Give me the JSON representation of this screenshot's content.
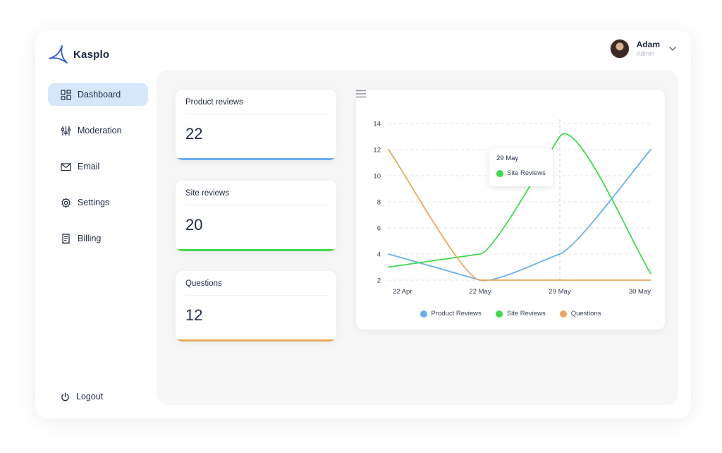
{
  "brand": {
    "name": "Kasplo",
    "accent": "#2f5bd8"
  },
  "user": {
    "name": "Adam",
    "role": "Admin"
  },
  "sidebar": {
    "items": [
      {
        "label": "Dashboard",
        "icon": "grid-icon",
        "active": true
      },
      {
        "label": "Moderation",
        "icon": "sliders-icon"
      },
      {
        "label": "Email",
        "icon": "mail-icon"
      },
      {
        "label": "Settings",
        "icon": "gear-icon"
      },
      {
        "label": "Billing",
        "icon": "receipt-icon"
      }
    ],
    "logout_label": "Logout"
  },
  "stats": [
    {
      "title": "Product reviews",
      "value": "22",
      "color": "#6aaef0"
    },
    {
      "title": "Site reviews",
      "value": "20",
      "color": "#3fd94b"
    },
    {
      "title": "Questions",
      "value": "12",
      "color": "#e9a95d"
    }
  ],
  "tooltip": {
    "title": "29 May",
    "series": "Site Reviews"
  },
  "chart_data": {
    "type": "line",
    "categories": [
      "22 Apr",
      "22 May",
      "29 May",
      "30 May"
    ],
    "ylim": [
      2,
      14
    ],
    "yticks": [
      2,
      4,
      6,
      8,
      10,
      12,
      14
    ],
    "grid": true,
    "legend_position": "bottom",
    "series": [
      {
        "name": "Product Reviews",
        "color": "#6aaef0",
        "values": [
          4,
          2,
          4,
          12
        ]
      },
      {
        "name": "Site Reviews",
        "color": "#3fd94b",
        "values": [
          3,
          4,
          13,
          2.5
        ]
      },
      {
        "name": "Questions",
        "color": "#e9a95d",
        "values": [
          12,
          2,
          2,
          2
        ]
      }
    ]
  }
}
